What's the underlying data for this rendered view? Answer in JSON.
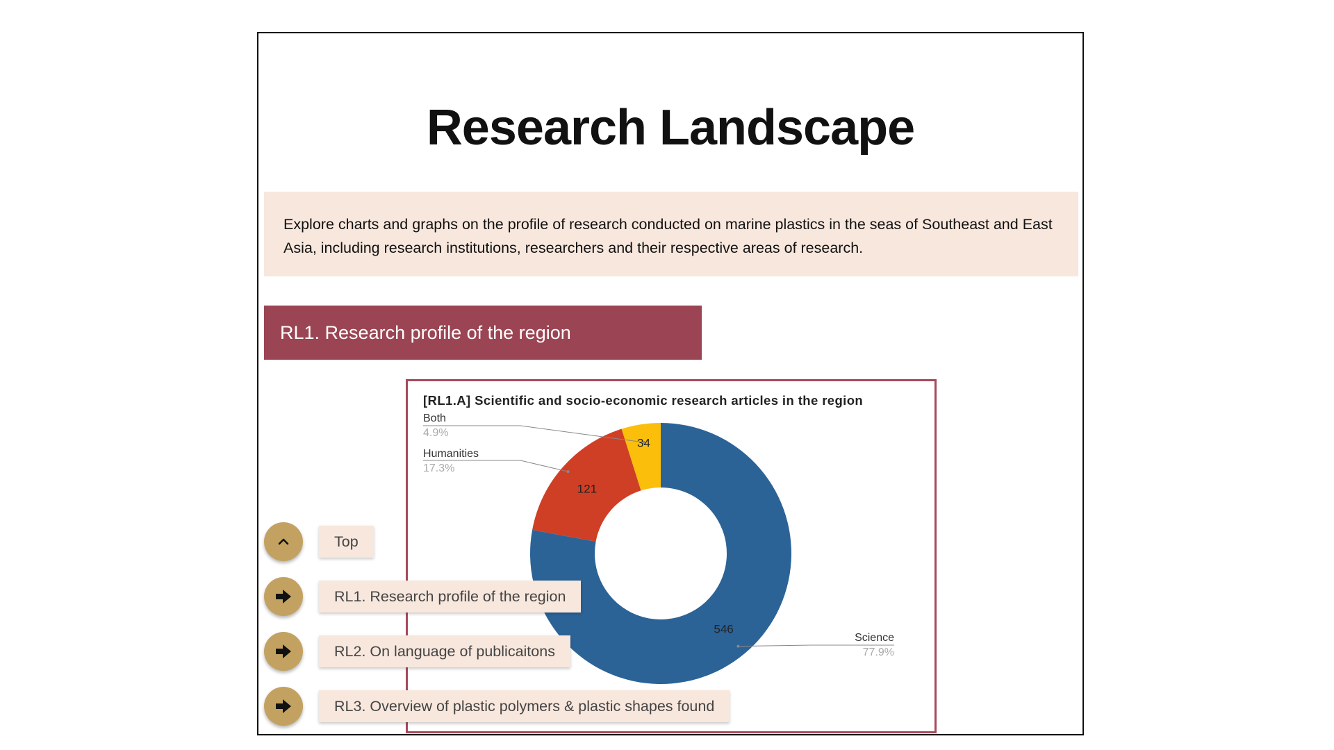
{
  "page": {
    "title": "Research Landscape",
    "intro": "Explore charts and graphs on the profile of research conducted on marine plastics in the seas of Southeast and East Asia, including research institutions, researchers and their respective areas of research."
  },
  "section": {
    "header": "RL1. Research profile of the region"
  },
  "nav": {
    "items": [
      {
        "label": "Top",
        "icon": "chevron-up-icon"
      },
      {
        "label": "RL1. Research profile of the region",
        "icon": "arrow-right-icon"
      },
      {
        "label": "RL2. On language of publicaitons",
        "icon": "arrow-right-icon"
      },
      {
        "label": "RL3. Overview of plastic polymers & plastic shapes found",
        "icon": "arrow-right-icon"
      }
    ],
    "button_color": "#c3a261",
    "label_bg": "#f8e7dd"
  },
  "colors": {
    "accent": "#9b4453",
    "chart_border": "#a8495b",
    "intro_bg": "#f8e7dd"
  },
  "chart_data": {
    "type": "pie",
    "title": "[RL1.A] Scientific and socio-economic research articles in the region",
    "donut": true,
    "slices": [
      {
        "label": "Science",
        "value": 546,
        "percent": "77.9%",
        "color": "#2b6397"
      },
      {
        "label": "Humanities",
        "value": 121,
        "percent": "17.3%",
        "color": "#cf3f25"
      },
      {
        "label": "Both",
        "value": 34,
        "percent": "4.9%",
        "color": "#fbbf0b"
      }
    ]
  }
}
